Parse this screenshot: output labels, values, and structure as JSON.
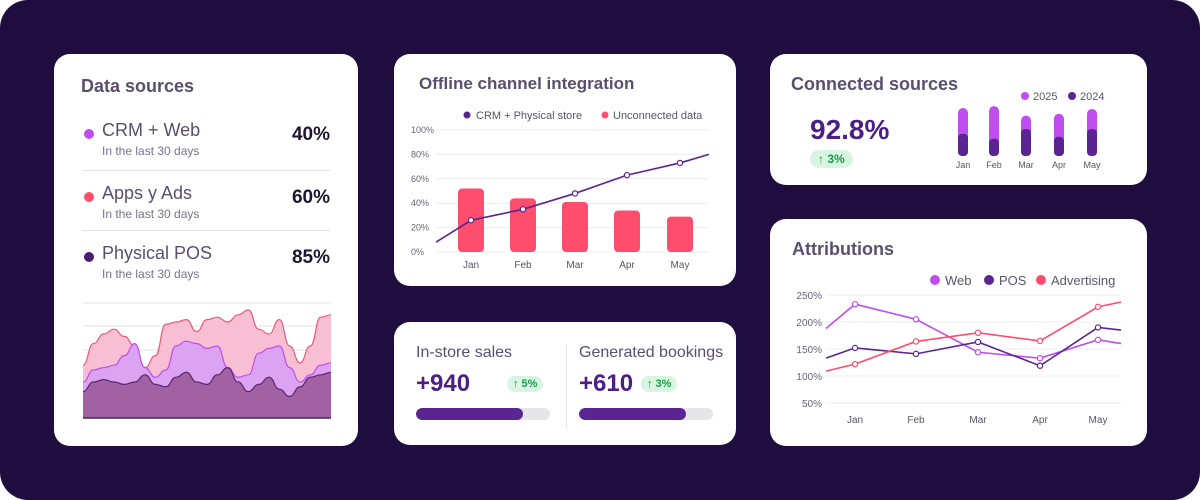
{
  "colors": {
    "background": "#1e0d3e",
    "purple": "#5a2590",
    "violet": "#c04df0",
    "pink": "#ff4d6d",
    "light_pink": "#f7b8cf",
    "green": "#1e9a4a"
  },
  "data_sources": {
    "title": "Data sources",
    "items": [
      {
        "name": "CRM + Web",
        "sub": "In the last 30 days",
        "value": "40%",
        "color": "#c04df0"
      },
      {
        "name": "Apps y Ads",
        "sub": "In the last 30 days",
        "value": "60%",
        "color": "#ff4d6d"
      },
      {
        "name": "Physical POS",
        "sub": "In the last 30 days",
        "value": "85%",
        "color": "#4b1f6e"
      }
    ]
  },
  "offline_channel": {
    "title": "Offline channel integration"
  },
  "sales": {
    "in_store": {
      "label": "In-store sales",
      "value": "+940",
      "badge": "↑ 5%",
      "progress": 0.8
    },
    "bookings": {
      "label": "Generated bookings",
      "value": "+610",
      "badge": "↑ 3%",
      "progress": 0.8
    }
  },
  "connected_sources": {
    "title": "Connected sources",
    "value": "92.8%",
    "badge": "↑ 3%"
  },
  "attributions": {
    "title": "Attributions"
  },
  "chart_data": [
    {
      "type": "area",
      "id": "data-sources-area",
      "x": [
        0,
        1,
        2,
        3,
        4,
        5,
        6,
        7,
        8,
        9,
        10,
        11,
        12,
        13,
        14,
        15,
        16,
        17,
        18,
        19,
        20,
        21,
        22,
        23,
        24
      ],
      "ylim": [
        0,
        100
      ],
      "series": [
        {
          "color": "#f7b8cf",
          "values": [
            44,
            62,
            70,
            74,
            68,
            60,
            42,
            52,
            78,
            80,
            82,
            72,
            82,
            84,
            80,
            86,
            90,
            74,
            70,
            82,
            60,
            46,
            60,
            84,
            86
          ]
        },
        {
          "color": "#d8a0f5",
          "values": [
            30,
            40,
            42,
            44,
            52,
            62,
            42,
            34,
            40,
            60,
            64,
            62,
            58,
            60,
            42,
            34,
            36,
            54,
            58,
            60,
            42,
            30,
            36,
            44,
            46
          ]
        },
        {
          "color": "#9a5a9a",
          "values": [
            22,
            30,
            32,
            30,
            28,
            30,
            36,
            28,
            26,
            34,
            38,
            30,
            28,
            36,
            42,
            30,
            22,
            28,
            34,
            24,
            18,
            26,
            34,
            36,
            38
          ]
        }
      ]
    },
    {
      "type": "bar",
      "id": "offline-channel",
      "title": "Offline channel integration",
      "categories": [
        "Jan",
        "Feb",
        "Mar",
        "Apr",
        "May"
      ],
      "yticks": [
        "0%",
        "20%",
        "40%",
        "60%",
        "80%",
        "100%"
      ],
      "ylim": [
        0,
        100
      ],
      "legend": "top-right",
      "series": [
        {
          "name": "Unconnected data",
          "type": "bar",
          "values": [
            52,
            44,
            41,
            34,
            29
          ]
        },
        {
          "name": "CRM + Physical store",
          "type": "line",
          "values": [
            26,
            35,
            48,
            63,
            73
          ],
          "start": 8,
          "end": 80
        }
      ]
    },
    {
      "type": "bar",
      "id": "connected-sources",
      "title": "Connected sources",
      "categories": [
        "Jan",
        "Feb",
        "Mar",
        "Apr",
        "May"
      ],
      "legend": "top-right",
      "series": [
        {
          "name": "2025",
          "values": [
            50,
            52,
            42,
            44,
            49
          ]
        },
        {
          "name": "2024",
          "values": [
            23,
            18,
            28,
            20,
            28
          ]
        }
      ]
    },
    {
      "type": "line",
      "id": "attributions",
      "title": "Attributions",
      "categories": [
        "Jan",
        "Feb",
        "Mar",
        "Apr",
        "May"
      ],
      "yticks": [
        "50%",
        "100%",
        "150%",
        "200%",
        "250%"
      ],
      "ylim": [
        50,
        250
      ],
      "legend": "top-right",
      "series": [
        {
          "name": "Web",
          "start": 188,
          "end": 160,
          "values": [
            233,
            205,
            144,
            133,
            167
          ]
        },
        {
          "name": "POS",
          "start": 133,
          "end": 185,
          "values": [
            152,
            141,
            163,
            119,
            190
          ]
        },
        {
          "name": "Advertising",
          "start": 109,
          "end": 237,
          "values": [
            122,
            164,
            180,
            165,
            228
          ]
        }
      ]
    }
  ]
}
